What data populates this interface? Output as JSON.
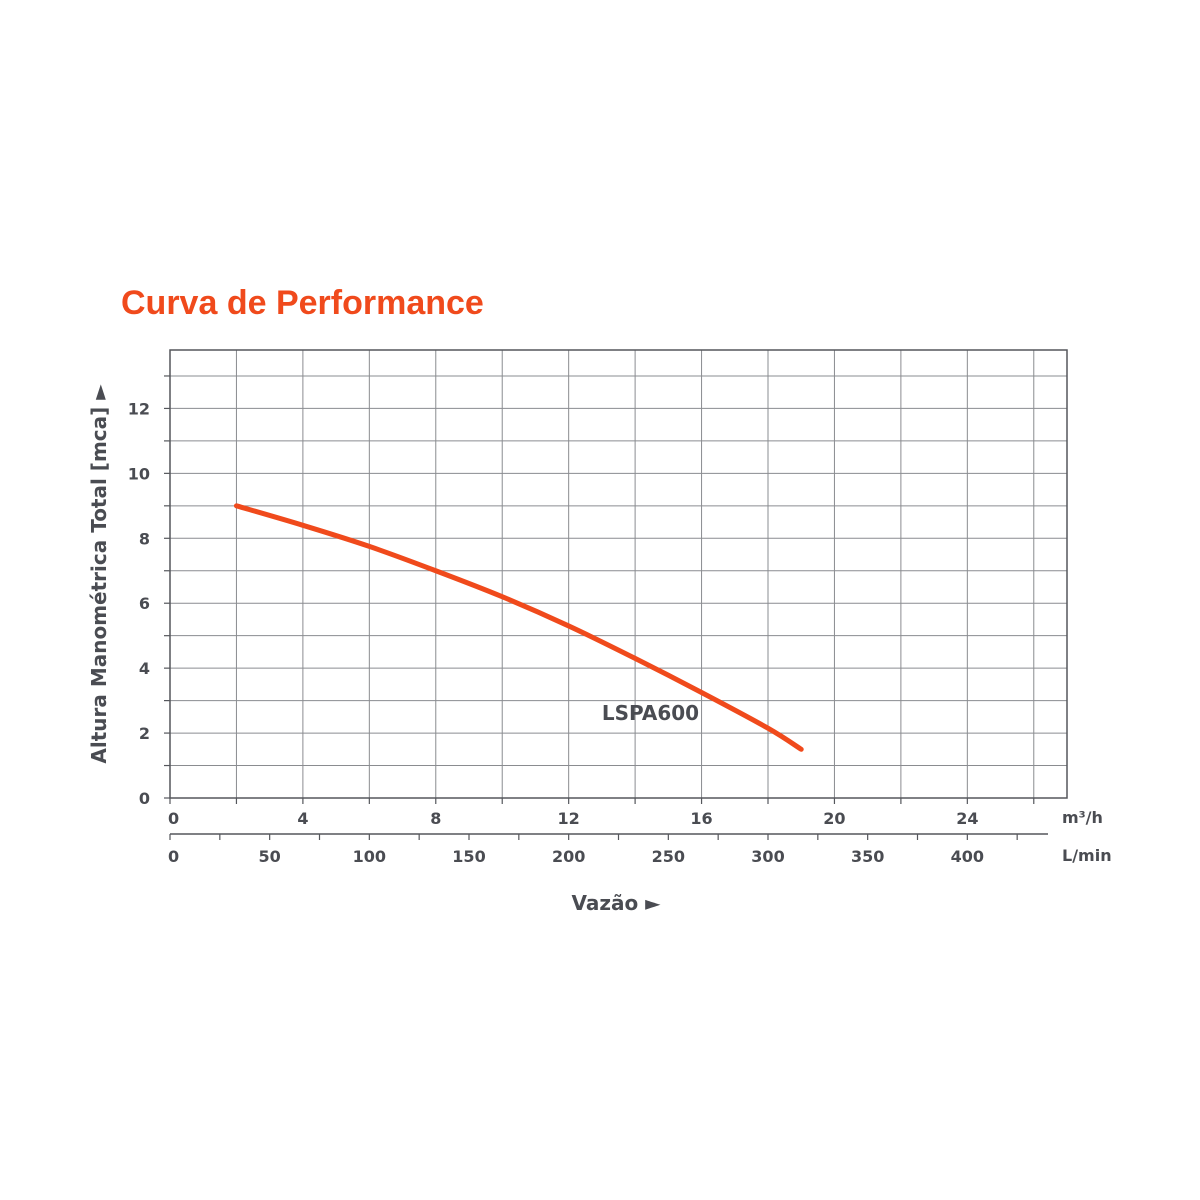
{
  "colors": {
    "accent": "#f04a1c",
    "text": "#4a4c52",
    "grid": "#8a8c90"
  },
  "chart_data": {
    "type": "line",
    "title": "Curva de Performance",
    "xlabel": "Vazão ►",
    "ylabel": "Altura Manométrica Total [mca] ►",
    "x_unit_primary": "m³/h",
    "x_unit_secondary": "L/min",
    "xlim": [
      0,
      27
    ],
    "ylim": [
      0,
      13.8
    ],
    "x_ticks_primary": [
      "0",
      "4",
      "8",
      "12",
      "16",
      "20",
      "24"
    ],
    "x_ticks_primary_values": [
      0,
      4,
      8,
      12,
      16,
      20,
      24
    ],
    "x_ticks_secondary": [
      "0",
      "50",
      "100",
      "150",
      "200",
      "250",
      "300",
      "350",
      "400"
    ],
    "x_ticks_secondary_values": [
      0,
      50,
      100,
      150,
      200,
      250,
      300,
      350,
      400
    ],
    "y_ticks": [
      "0",
      "2",
      "4",
      "6",
      "8",
      "10",
      "12"
    ],
    "y_ticks_values": [
      0,
      2,
      4,
      6,
      8,
      10,
      12
    ],
    "grid": true,
    "series": [
      {
        "name": "LSPA600",
        "color": "#f04a1c",
        "x": [
          2,
          4,
          6,
          8,
          10,
          12,
          14,
          16,
          18,
          19
        ],
        "y": [
          9.0,
          8.4,
          7.75,
          7.0,
          6.2,
          5.3,
          4.3,
          3.25,
          2.15,
          1.5
        ]
      }
    ]
  }
}
